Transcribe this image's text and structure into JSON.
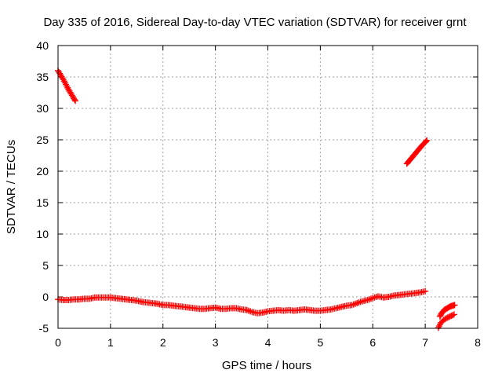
{
  "chart_data": {
    "type": "scatter",
    "title": "Day 335 of 2016, Sidereal Day-to-day VTEC variation (SDTVAR) for receiver grnt",
    "xlabel": "GPS time / hours",
    "ylabel": "SDTVAR / TECUs",
    "xlim": [
      0,
      8
    ],
    "ylim": [
      -5,
      40
    ],
    "xticks": [
      "0",
      "1",
      "2",
      "3",
      "4",
      "5",
      "6",
      "7",
      "8"
    ],
    "yticks": [
      "-5",
      "0",
      "5",
      "10",
      "15",
      "20",
      "25",
      "30",
      "35",
      "40"
    ],
    "grid": true,
    "marker": "plus",
    "color": "#ff0000",
    "series": [
      {
        "x": [
          0.0,
          0.05,
          0.1,
          0.15,
          0.2,
          0.25,
          0.3,
          0.33
        ],
        "y": [
          36.0,
          35.3,
          34.6,
          33.8,
          33.0,
          32.3,
          31.6,
          31.2
        ]
      },
      {
        "x": [
          0.0,
          0.1,
          0.2,
          0.3,
          0.4,
          0.5,
          0.6,
          0.7,
          0.8,
          0.9,
          1.0,
          1.1,
          1.2,
          1.3,
          1.4,
          1.5,
          1.6,
          1.7,
          1.8,
          1.9,
          2.0,
          2.1,
          2.2,
          2.3,
          2.4,
          2.5,
          2.6,
          2.7,
          2.8,
          2.9,
          3.0,
          3.1,
          3.2,
          3.3,
          3.4,
          3.5,
          3.6,
          3.7,
          3.8,
          3.9,
          4.0,
          4.1,
          4.2,
          4.3,
          4.4,
          4.5,
          4.6,
          4.7,
          4.8,
          4.9,
          5.0,
          5.1,
          5.2,
          5.3,
          5.4,
          5.5,
          5.6,
          5.7,
          5.8,
          5.9,
          6.0,
          6.1,
          6.2,
          6.3,
          6.4,
          6.5,
          6.6,
          6.7,
          6.8,
          6.9,
          7.0
        ],
        "y": [
          -0.4,
          -0.5,
          -0.5,
          -0.4,
          -0.4,
          -0.3,
          -0.3,
          -0.1,
          -0.1,
          -0.1,
          -0.1,
          -0.2,
          -0.3,
          -0.4,
          -0.5,
          -0.6,
          -0.8,
          -0.9,
          -1.0,
          -1.1,
          -1.3,
          -1.3,
          -1.4,
          -1.5,
          -1.6,
          -1.7,
          -1.8,
          -1.9,
          -1.9,
          -1.8,
          -1.7,
          -1.9,
          -1.9,
          -1.8,
          -1.8,
          -2.0,
          -2.1,
          -2.4,
          -2.6,
          -2.5,
          -2.3,
          -2.2,
          -2.1,
          -2.2,
          -2.1,
          -2.2,
          -2.1,
          -2.0,
          -2.1,
          -2.2,
          -2.2,
          -2.1,
          -2.0,
          -1.8,
          -1.6,
          -1.4,
          -1.3,
          -1.0,
          -0.7,
          -0.5,
          -0.2,
          0.1,
          -0.1,
          0.0,
          0.2,
          0.3,
          0.4,
          0.5,
          0.6,
          0.7,
          0.9
        ]
      },
      {
        "x": [
          6.65,
          6.7,
          6.75,
          6.8,
          6.85,
          6.9,
          6.95,
          7.0,
          7.03
        ],
        "y": [
          21.2,
          21.7,
          22.2,
          22.7,
          23.2,
          23.7,
          24.2,
          24.6,
          24.9
        ]
      },
      {
        "x": [
          7.28,
          7.32,
          7.36,
          7.4,
          7.44,
          7.48,
          7.52,
          7.56
        ],
        "y": [
          -3.1,
          -2.5,
          -2.1,
          -1.9,
          -1.7,
          -1.5,
          -1.4,
          -1.3
        ]
      },
      {
        "x": [
          7.25,
          7.3,
          7.35,
          7.4,
          7.45,
          7.5,
          7.55
        ],
        "y": [
          -4.9,
          -4.1,
          -3.7,
          -3.4,
          -3.2,
          -3.0,
          -2.8
        ]
      }
    ]
  }
}
